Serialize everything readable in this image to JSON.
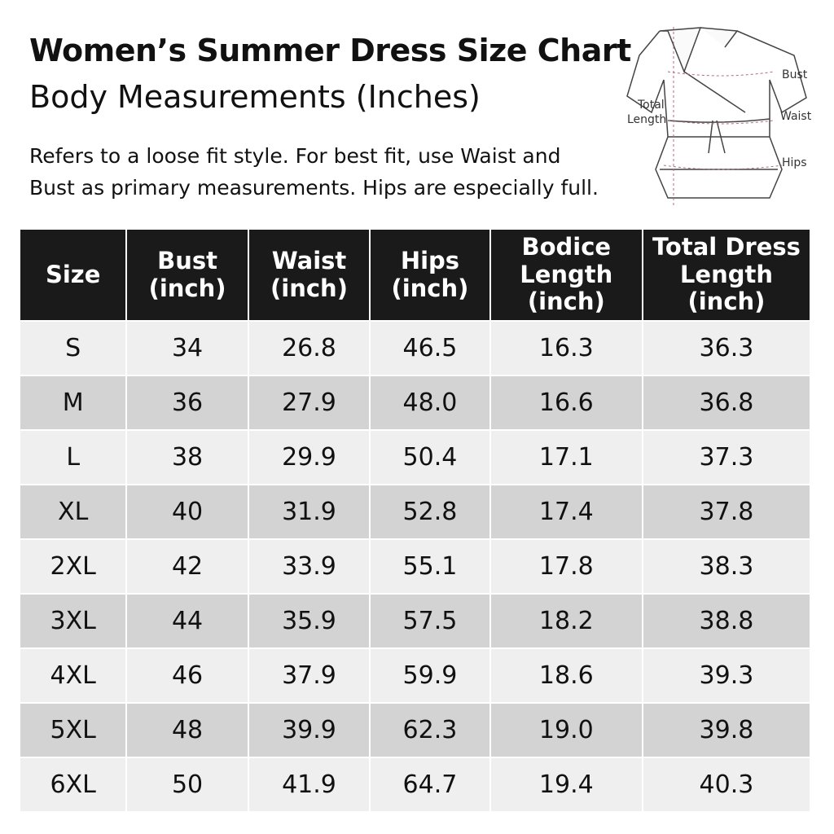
{
  "header": {
    "title": "Women’s Summer Dress Size Chart",
    "subtitle": "Body Measurements (Inches)",
    "note_lines": [
      "Refers to a loose fit style. For best fit, use Waist and",
      "Bust as primary measurements. Hips are especially full."
    ]
  },
  "diagram": {
    "labels": {
      "bust": "Bust",
      "total_length": [
        "Total",
        "Length"
      ],
      "waist": "Waist",
      "hips": "Hips"
    }
  },
  "table": {
    "headers": [
      [
        "Size"
      ],
      [
        "Bust",
        "(inch)"
      ],
      [
        "Waist",
        "(inch)"
      ],
      [
        "Hips",
        "(inch)"
      ],
      [
        "Bodice",
        "Length",
        "(inch)"
      ],
      [
        "Total Dress",
        "Length",
        "(inch)"
      ]
    ],
    "rows": [
      [
        "S",
        "34",
        "26.8",
        "46.5",
        "16.3",
        "36.3"
      ],
      [
        "M",
        "36",
        "27.9",
        "48.0",
        "16.6",
        "36.8"
      ],
      [
        "L",
        "38",
        "29.9",
        "50.4",
        "17.1",
        "37.3"
      ],
      [
        "XL",
        "40",
        "31.9",
        "52.8",
        "17.4",
        "37.8"
      ],
      [
        "2XL",
        "42",
        "33.9",
        "55.1",
        "17.8",
        "38.3"
      ],
      [
        "3XL",
        "44",
        "35.9",
        "57.5",
        "18.2",
        "38.8"
      ],
      [
        "4XL",
        "46",
        "37.9",
        "59.9",
        "18.6",
        "39.3"
      ],
      [
        "5XL",
        "48",
        "39.9",
        "62.3",
        "19.0",
        "39.8"
      ],
      [
        "6XL",
        "50",
        "41.9",
        "64.7",
        "19.4",
        "40.3"
      ]
    ]
  }
}
